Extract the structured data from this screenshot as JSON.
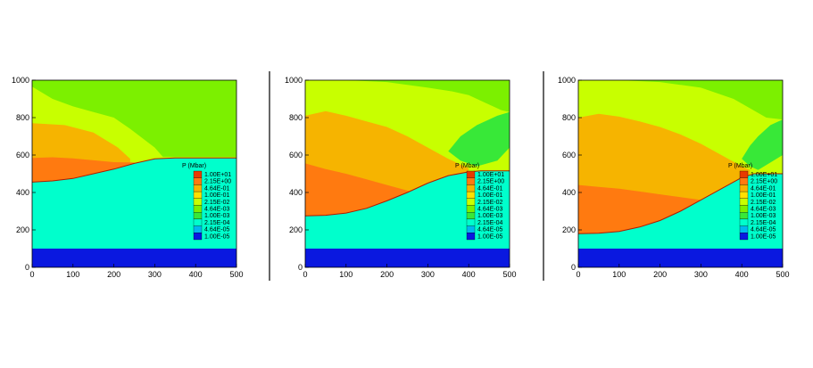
{
  "chart_data": [
    {
      "type": "contour",
      "xlim": [
        0,
        500
      ],
      "ylim": [
        0,
        1000
      ],
      "x_ticks": [
        "0",
        "100",
        "200",
        "300",
        "400",
        "500"
      ],
      "y_ticks": [
        "0",
        "200",
        "400",
        "600",
        "800",
        "1000"
      ],
      "legend": {
        "title": "P (Mbar)",
        "levels": [
          "1.00E+01",
          "2.15E+00",
          "4.64E-01",
          "1.00E-01",
          "2.15E-02",
          "4.64E-03",
          "1.00E-03",
          "2.15E-04",
          "4.64E-05",
          "1.00E-05"
        ],
        "colors": [
          "#e83a00",
          "#ff7a10",
          "#f6b400",
          "#ffe000",
          "#c8ff00",
          "#7cf000",
          "#38e838",
          "#00ffcc",
          "#00b8f0",
          "#0a18e0"
        ],
        "placement": "right-inside"
      },
      "regions": {
        "lower_band_top": 100,
        "interface": [
          [
            0,
            455
          ],
          [
            50,
            462
          ],
          [
            100,
            475
          ],
          [
            150,
            500
          ],
          [
            200,
            525
          ],
          [
            250,
            555
          ],
          [
            300,
            580
          ],
          [
            350,
            585
          ],
          [
            500,
            585
          ]
        ],
        "orange_top": [
          [
            0,
            585
          ],
          [
            50,
            588
          ],
          [
            100,
            582
          ],
          [
            150,
            572
          ],
          [
            200,
            562
          ],
          [
            250,
            560
          ]
        ],
        "yellow_top": [
          [
            0,
            770
          ],
          [
            80,
            760
          ],
          [
            150,
            720
          ],
          [
            210,
            640
          ],
          [
            240,
            580
          ]
        ],
        "yellowgreen_top": [
          [
            0,
            965
          ],
          [
            50,
            900
          ],
          [
            100,
            860
          ],
          [
            150,
            830
          ],
          [
            200,
            800
          ],
          [
            240,
            740
          ],
          [
            300,
            640
          ],
          [
            320,
            590
          ]
        ]
      }
    },
    {
      "type": "contour",
      "xlim": [
        0,
        500
      ],
      "ylim": [
        0,
        1000
      ],
      "x_ticks": [
        "0",
        "100",
        "200",
        "300",
        "400",
        "500"
      ],
      "y_ticks": [
        "0",
        "200",
        "400",
        "600",
        "800",
        "1000"
      ],
      "legend": {
        "title": "P (Mbar)",
        "levels": [
          "1.00E+01",
          "2.15E+00",
          "4.64E-01",
          "1.00E-01",
          "2.15E-02",
          "4.64E-03",
          "1.00E-03",
          "2.15E-04",
          "4.64E-05",
          "1.00E-05"
        ],
        "colors": [
          "#e83a00",
          "#ff7a10",
          "#f6b400",
          "#ffe000",
          "#c8ff00",
          "#7cf000",
          "#38e838",
          "#00ffcc",
          "#00b8f0",
          "#0a18e0"
        ],
        "placement": "right-inside"
      },
      "regions": {
        "lower_band_top": 100,
        "interface": [
          [
            0,
            275
          ],
          [
            50,
            278
          ],
          [
            100,
            290
          ],
          [
            150,
            315
          ],
          [
            200,
            355
          ],
          [
            250,
            400
          ],
          [
            300,
            450
          ],
          [
            350,
            490
          ],
          [
            400,
            510
          ],
          [
            430,
            515
          ],
          [
            500,
            515
          ]
        ],
        "orange_top": [
          [
            0,
            555
          ],
          [
            50,
            525
          ],
          [
            100,
            500
          ],
          [
            150,
            470
          ],
          [
            200,
            440
          ],
          [
            250,
            410
          ],
          [
            270,
            400
          ]
        ],
        "yellow_top": [
          [
            0,
            810
          ],
          [
            50,
            835
          ],
          [
            100,
            810
          ],
          [
            150,
            780
          ],
          [
            200,
            750
          ],
          [
            250,
            700
          ],
          [
            300,
            640
          ],
          [
            350,
            580
          ],
          [
            400,
            530
          ]
        ],
        "yellowgreen_top": [
          [
            0,
            1000
          ],
          [
            100,
            1000
          ],
          [
            200,
            990
          ],
          [
            300,
            960
          ],
          [
            360,
            940
          ],
          [
            400,
            920
          ],
          [
            440,
            880
          ],
          [
            480,
            840
          ],
          [
            500,
            830
          ]
        ],
        "green_pocket": [
          [
            350,
            620
          ],
          [
            380,
            700
          ],
          [
            420,
            760
          ],
          [
            470,
            810
          ],
          [
            500,
            830
          ],
          [
            500,
            640
          ],
          [
            470,
            570
          ],
          [
            420,
            540
          ],
          [
            380,
            570
          ]
        ]
      }
    },
    {
      "type": "contour",
      "xlim": [
        0,
        500
      ],
      "ylim": [
        0,
        1000
      ],
      "x_ticks": [
        "0",
        "100",
        "200",
        "300",
        "400",
        "500"
      ],
      "y_ticks": [
        "0",
        "200",
        "400",
        "600",
        "800",
        "1000"
      ],
      "legend": {
        "title": "P (Mbar)",
        "levels": [
          "1.00E+01",
          "2.15E+00",
          "4.64E-01",
          "1.00E-01",
          "2.15E-02",
          "4.64E-03",
          "1.00E-03",
          "2.15E-04",
          "4.64E-05",
          "1.00E-05"
        ],
        "colors": [
          "#e83a00",
          "#ff7a10",
          "#f6b400",
          "#ffe000",
          "#c8ff00",
          "#7cf000",
          "#38e838",
          "#00ffcc",
          "#00b8f0",
          "#0a18e0"
        ],
        "placement": "right-inside"
      },
      "regions": {
        "lower_band_top": 100,
        "interface": [
          [
            0,
            180
          ],
          [
            50,
            182
          ],
          [
            100,
            192
          ],
          [
            150,
            215
          ],
          [
            200,
            250
          ],
          [
            250,
            300
          ],
          [
            300,
            360
          ],
          [
            350,
            420
          ],
          [
            400,
            480
          ],
          [
            430,
            500
          ],
          [
            500,
            500
          ]
        ],
        "orange_top": [
          [
            0,
            440
          ],
          [
            50,
            430
          ],
          [
            100,
            420
          ],
          [
            150,
            405
          ],
          [
            200,
            390
          ],
          [
            250,
            375
          ],
          [
            300,
            360
          ]
        ],
        "yellow_top": [
          [
            0,
            800
          ],
          [
            50,
            820
          ],
          [
            100,
            805
          ],
          [
            150,
            780
          ],
          [
            200,
            750
          ],
          [
            250,
            710
          ],
          [
            300,
            660
          ],
          [
            350,
            600
          ],
          [
            400,
            540
          ],
          [
            420,
            520
          ]
        ],
        "yellowgreen_top": [
          [
            0,
            1000
          ],
          [
            100,
            1000
          ],
          [
            200,
            990
          ],
          [
            300,
            960
          ],
          [
            380,
            900
          ],
          [
            420,
            850
          ],
          [
            460,
            800
          ],
          [
            500,
            790
          ]
        ],
        "green_pocket": [
          [
            400,
            580
          ],
          [
            420,
            650
          ],
          [
            440,
            700
          ],
          [
            470,
            760
          ],
          [
            500,
            790
          ],
          [
            500,
            600
          ],
          [
            470,
            560
          ],
          [
            440,
            520
          ],
          [
            420,
            540
          ]
        ]
      }
    }
  ]
}
